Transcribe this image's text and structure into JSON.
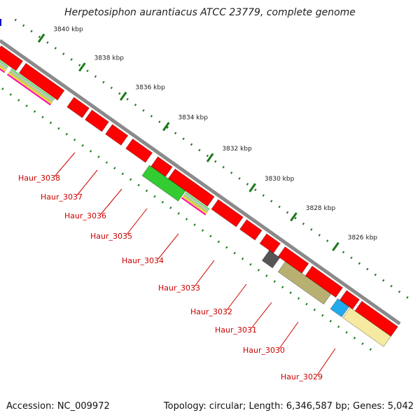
{
  "title": "Herpetosiphon aurantiacus ATCC 23779, complete genome",
  "footer": {
    "accession": "Accession: NC_009972",
    "summary": "Topology: circular; Length: 6,346,587 bp; Genes: 5,042"
  },
  "scale_labels": [
    "3840 kbp",
    "3838 kbp",
    "3836 kbp",
    "3834 kbp",
    "3832 kbp",
    "3830 kbp",
    "3828 kbp",
    "3826 kbp"
  ],
  "gene_labels": [
    "Haur_3038",
    "Haur_3037",
    "Haur_3036",
    "Haur_3035",
    "Haur_3034",
    "Haur_3033",
    "Haur_3032",
    "Haur_3031",
    "Haur_3030",
    "Haur_3029"
  ],
  "colors": {
    "gene": "#ff0000",
    "backbone": "#8a8a8a",
    "scale_tick": "#1a7a1a",
    "label_text": "#cc0000",
    "cog_green": "#33cc33",
    "cog_gray": "#555555",
    "cog_olive": "#b8b070",
    "cog_cyan": "#22aaee",
    "cog_lightyellow": "#f6eaa0",
    "cog_magenta": "#ff00aa"
  }
}
